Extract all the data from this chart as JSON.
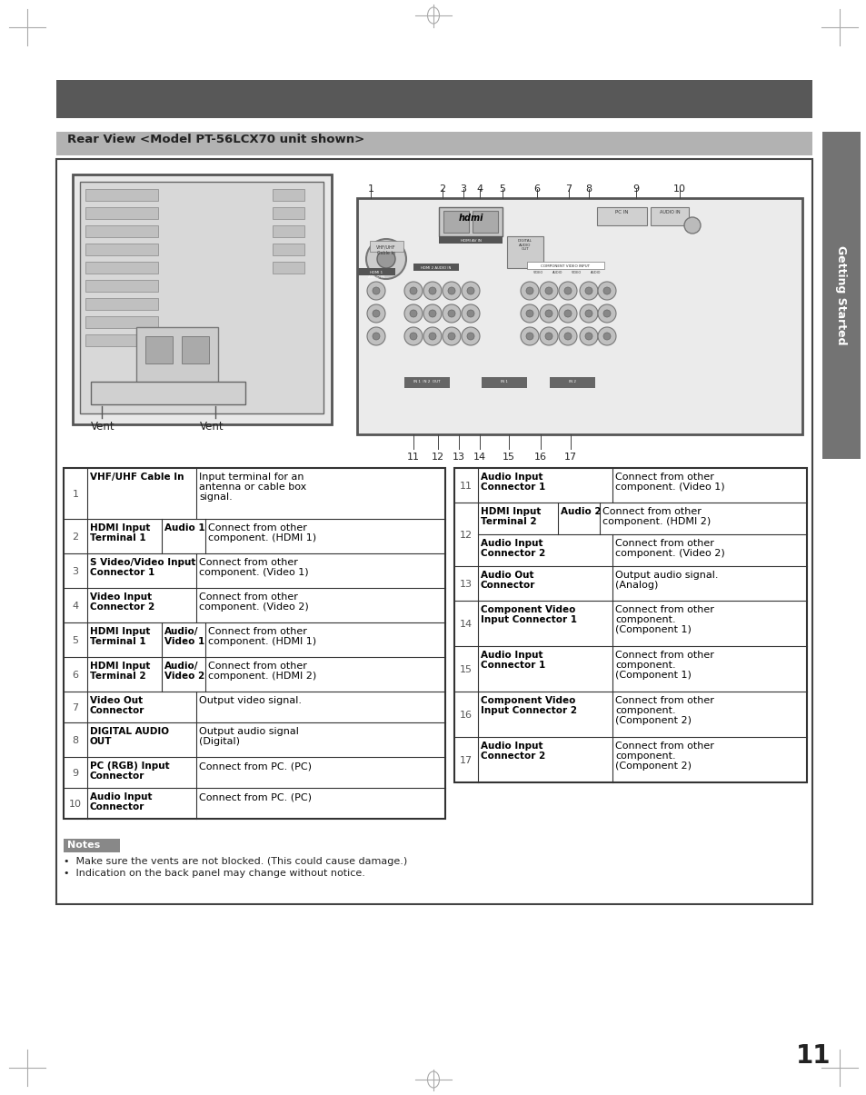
{
  "page_bg": "#ffffff",
  "header_bg": "#595959",
  "subheader_bg": "#b0b0b0",
  "subheader_text": "Rear View <Model PT-56LCX70 unit shown>",
  "sidebar_bg": "#737373",
  "sidebar_text": "Getting Started",
  "notes_bg": "#888888",
  "notes_text": "Notes",
  "note1": "•  Make sure the vents are not blocked. (This could cause damage.)",
  "note2": "•  Indication on the back panel may change without notice.",
  "page_number": "11",
  "table_left": [
    {
      "num": "1",
      "name": "VHF/UHF Cable In",
      "audio": "",
      "desc": "Input terminal for an\nantenna or cable box\nsignal."
    },
    {
      "num": "2",
      "name": "HDMI Input\nTerminal 1",
      "audio": "Audio 1",
      "desc": "Connect from other\ncomponent. (HDMI 1)"
    },
    {
      "num": "3",
      "name": "S Video/Video Input\nConnector 1",
      "audio": "",
      "desc": "Connect from other\ncomponent. (Video 1)"
    },
    {
      "num": "4",
      "name": "Video Input\nConnector 2",
      "audio": "",
      "desc": "Connect from other\ncomponent. (Video 2)"
    },
    {
      "num": "5",
      "name": "HDMI Input\nTerminal 1",
      "audio": "Audio/\nVideo 1",
      "desc": "Connect from other\ncomponent. (HDMI 1)"
    },
    {
      "num": "6",
      "name": "HDMI Input\nTerminal 2",
      "audio": "Audio/\nVideo 2",
      "desc": "Connect from other\ncomponent. (HDMI 2)"
    },
    {
      "num": "7",
      "name": "Video Out\nConnector",
      "audio": "",
      "desc": "Output video signal."
    },
    {
      "num": "8",
      "name": "DIGITAL AUDIO\nOUT",
      "audio": "",
      "desc": "Output audio signal\n(Digital)"
    },
    {
      "num": "9",
      "name": "PC (RGB) Input\nConnector",
      "audio": "",
      "desc": "Connect from PC. (PC)"
    },
    {
      "num": "10",
      "name": "Audio Input\nConnector",
      "audio": "",
      "desc": "Connect from PC. (PC)"
    }
  ],
  "table_right_11": {
    "num": "11",
    "name": "Audio Input\nConnector 1",
    "desc": "Connect from other\ncomponent. (Video 1)"
  },
  "table_right_12a": {
    "name": "HDMI Input\nTerminal 2",
    "audio": "Audio 2",
    "desc": "Connect from other\ncomponent. (HDMI 2)"
  },
  "table_right_12b": {
    "name": "Audio Input\nConnector 2",
    "desc": "Connect from other\ncomponent. (Video 2)"
  },
  "table_right_13": {
    "num": "13",
    "name": "Audio Out\nConnector",
    "desc": "Output audio signal.\n(Analog)"
  },
  "table_right_14": {
    "num": "14",
    "name": "Component Video\nInput Connector 1",
    "desc": "Connect from other\ncomponent.\n(Component 1)"
  },
  "table_right_15": {
    "num": "15",
    "name": "Audio Input\nConnector 1",
    "desc": "Connect from other\ncomponent.\n(Component 1)"
  },
  "table_right_16": {
    "num": "16",
    "name": "Component Video\nInput Connector 2",
    "desc": "Connect from other\ncomponent.\n(Component 2)"
  },
  "table_right_17": {
    "num": "17",
    "name": "Audio Input\nConnector 2",
    "desc": "Connect from other\ncomponent.\n(Component 2)"
  }
}
